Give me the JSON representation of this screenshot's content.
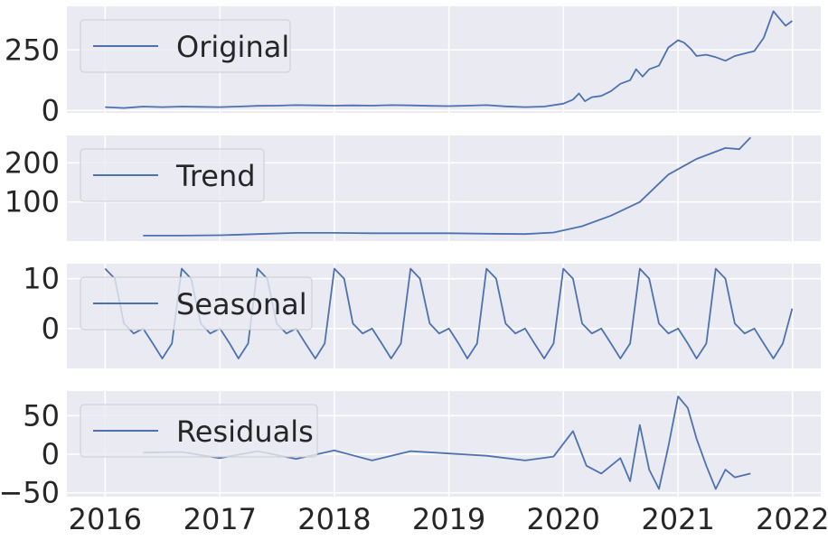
{
  "chart_data": [
    {
      "type": "line",
      "series": [
        {
          "name": "Original",
          "color": "#4c72b0",
          "points": [
            [
              "2016-01-01",
              14
            ],
            [
              "2016-02-01",
              12
            ],
            [
              "2016-03-01",
              10
            ],
            [
              "2016-04-01",
              13
            ],
            [
              "2016-05-01",
              16
            ],
            [
              "2016-07-01",
              14
            ],
            [
              "2016-09-01",
              16
            ],
            [
              "2016-11-01",
              15
            ],
            [
              "2017-01-01",
              14
            ],
            [
              "2017-03-01",
              16
            ],
            [
              "2017-05-01",
              19
            ],
            [
              "2017-07-01",
              20
            ],
            [
              "2017-09-01",
              22
            ],
            [
              "2017-11-01",
              21
            ],
            [
              "2018-01-01",
              20
            ],
            [
              "2018-03-01",
              21
            ],
            [
              "2018-05-01",
              20
            ],
            [
              "2018-07-01",
              22
            ],
            [
              "2018-09-01",
              21
            ],
            [
              "2018-11-01",
              19
            ],
            [
              "2019-01-01",
              18
            ],
            [
              "2019-03-01",
              20
            ],
            [
              "2019-05-01",
              22
            ],
            [
              "2019-07-01",
              17
            ],
            [
              "2019-09-01",
              14
            ],
            [
              "2019-11-01",
              16
            ],
            [
              "2020-01-01",
              28
            ],
            [
              "2020-02-01",
              45
            ],
            [
              "2020-02-20",
              70
            ],
            [
              "2020-03-10",
              38
            ],
            [
              "2020-04-01",
              55
            ],
            [
              "2020-05-01",
              60
            ],
            [
              "2020-06-01",
              80
            ],
            [
              "2020-07-01",
              110
            ],
            [
              "2020-08-01",
              125
            ],
            [
              "2020-08-20",
              170
            ],
            [
              "2020-09-10",
              140
            ],
            [
              "2020-10-01",
              170
            ],
            [
              "2020-11-01",
              185
            ],
            [
              "2020-12-01",
              260
            ],
            [
              "2021-01-01",
              290
            ],
            [
              "2021-01-20",
              280
            ],
            [
              "2021-02-10",
              255
            ],
            [
              "2021-03-01",
              225
            ],
            [
              "2021-04-01",
              230
            ],
            [
              "2021-05-01",
              220
            ],
            [
              "2021-06-01",
              205
            ],
            [
              "2021-07-01",
              225
            ],
            [
              "2021-08-01",
              235
            ],
            [
              "2021-09-01",
              245
            ],
            [
              "2021-10-01",
              300
            ],
            [
              "2021-11-01",
              410
            ],
            [
              "2021-11-20",
              380
            ],
            [
              "2021-12-10",
              350
            ],
            [
              "2021-12-31",
              370
            ]
          ]
        }
      ],
      "yticks": [
        0,
        250
      ],
      "ylim": [
        -10,
        430
      ],
      "xlim": [
        "2015-09-01",
        "2022-04-01"
      ]
    },
    {
      "type": "line",
      "series": [
        {
          "name": "Trend",
          "color": "#4c72b0",
          "points": [
            [
              "2016-05-01",
              14
            ],
            [
              "2016-09-01",
              14
            ],
            [
              "2017-01-01",
              15
            ],
            [
              "2017-05-01",
              18
            ],
            [
              "2017-09-01",
              21
            ],
            [
              "2018-01-01",
              21
            ],
            [
              "2018-05-01",
              20
            ],
            [
              "2018-09-01",
              20
            ],
            [
              "2019-01-01",
              20
            ],
            [
              "2019-05-01",
              19
            ],
            [
              "2019-09-01",
              18
            ],
            [
              "2019-12-01",
              22
            ],
            [
              "2020-03-01",
              38
            ],
            [
              "2020-06-01",
              65
            ],
            [
              "2020-09-01",
              100
            ],
            [
              "2020-12-01",
              170
            ],
            [
              "2021-03-01",
              210
            ],
            [
              "2021-06-01",
              238
            ],
            [
              "2021-07-15",
              235
            ],
            [
              "2021-08-20",
              265
            ]
          ]
        }
      ],
      "yticks": [
        100,
        200
      ],
      "ylim": [
        0,
        270
      ],
      "xlim": [
        "2015-09-01",
        "2022-04-01"
      ]
    },
    {
      "type": "line",
      "series": [
        {
          "name": "Seasonal",
          "color": "#4c72b0",
          "points": [
            [
              "2016-01-01",
              12
            ],
            [
              "2016-02-01",
              10
            ],
            [
              "2016-03-01",
              1
            ],
            [
              "2016-04-01",
              -1
            ],
            [
              "2016-05-01",
              0
            ],
            [
              "2016-06-01",
              -3
            ],
            [
              "2016-07-01",
              -6
            ],
            [
              "2016-08-01",
              -3
            ],
            [
              "2016-09-01",
              12
            ],
            [
              "2016-10-01",
              10
            ],
            [
              "2016-11-01",
              1
            ],
            [
              "2016-12-01",
              -1
            ],
            [
              "2017-01-01",
              0
            ],
            [
              "2017-02-01",
              -3
            ],
            [
              "2017-03-01",
              -6
            ],
            [
              "2017-04-01",
              -3
            ],
            [
              "2017-05-01",
              12
            ],
            [
              "2017-06-01",
              10
            ],
            [
              "2017-07-01",
              1
            ],
            [
              "2017-08-01",
              -1
            ],
            [
              "2017-09-01",
              0
            ],
            [
              "2017-10-01",
              -3
            ],
            [
              "2017-11-01",
              -6
            ],
            [
              "2017-12-01",
              -3
            ],
            [
              "2018-01-01",
              12
            ],
            [
              "2018-02-01",
              10
            ],
            [
              "2018-03-01",
              1
            ],
            [
              "2018-04-01",
              -1
            ],
            [
              "2018-05-01",
              0
            ],
            [
              "2018-06-01",
              -3
            ],
            [
              "2018-07-01",
              -6
            ],
            [
              "2018-08-01",
              -3
            ],
            [
              "2018-09-01",
              12
            ],
            [
              "2018-10-01",
              10
            ],
            [
              "2018-11-01",
              1
            ],
            [
              "2018-12-01",
              -1
            ],
            [
              "2019-01-01",
              0
            ],
            [
              "2019-02-01",
              -3
            ],
            [
              "2019-03-01",
              -6
            ],
            [
              "2019-04-01",
              -3
            ],
            [
              "2019-05-01",
              12
            ],
            [
              "2019-06-01",
              10
            ],
            [
              "2019-07-01",
              1
            ],
            [
              "2019-08-01",
              -1
            ],
            [
              "2019-09-01",
              0
            ],
            [
              "2019-10-01",
              -3
            ],
            [
              "2019-11-01",
              -6
            ],
            [
              "2019-12-01",
              -3
            ],
            [
              "2020-01-01",
              12
            ],
            [
              "2020-02-01",
              10
            ],
            [
              "2020-03-01",
              1
            ],
            [
              "2020-04-01",
              -1
            ],
            [
              "2020-05-01",
              0
            ],
            [
              "2020-06-01",
              -3
            ],
            [
              "2020-07-01",
              -6
            ],
            [
              "2020-08-01",
              -3
            ],
            [
              "2020-09-01",
              12
            ],
            [
              "2020-10-01",
              10
            ],
            [
              "2020-11-01",
              1
            ],
            [
              "2020-12-01",
              -1
            ],
            [
              "2021-01-01",
              0
            ],
            [
              "2021-02-01",
              -3
            ],
            [
              "2021-03-01",
              -6
            ],
            [
              "2021-04-01",
              -3
            ],
            [
              "2021-05-01",
              12
            ],
            [
              "2021-06-01",
              10
            ],
            [
              "2021-07-01",
              1
            ],
            [
              "2021-08-01",
              -1
            ],
            [
              "2021-09-01",
              0
            ],
            [
              "2021-10-01",
              -3
            ],
            [
              "2021-11-01",
              -6
            ],
            [
              "2021-12-01",
              -3
            ],
            [
              "2021-12-31",
              4
            ]
          ]
        }
      ],
      "yticks": [
        0,
        10
      ],
      "ylim": [
        -8,
        13
      ],
      "xlim": [
        "2015-09-01",
        "2022-04-01"
      ]
    },
    {
      "type": "line",
      "series": [
        {
          "name": "Residuals",
          "color": "#4c72b0",
          "points": [
            [
              "2016-05-01",
              2
            ],
            [
              "2016-09-01",
              3
            ],
            [
              "2017-01-01",
              -5
            ],
            [
              "2017-05-01",
              4
            ],
            [
              "2017-09-01",
              -6
            ],
            [
              "2018-01-01",
              5
            ],
            [
              "2018-05-01",
              -8
            ],
            [
              "2018-09-01",
              4
            ],
            [
              "2019-01-01",
              1
            ],
            [
              "2019-05-01",
              -2
            ],
            [
              "2019-09-01",
              -8
            ],
            [
              "2019-12-01",
              -3
            ],
            [
              "2020-02-01",
              30
            ],
            [
              "2020-03-15",
              -15
            ],
            [
              "2020-05-01",
              -25
            ],
            [
              "2020-07-01",
              -5
            ],
            [
              "2020-08-01",
              -35
            ],
            [
              "2020-09-01",
              38
            ],
            [
              "2020-10-01",
              -20
            ],
            [
              "2020-11-01",
              -45
            ],
            [
              "2020-12-01",
              10
            ],
            [
              "2021-01-01",
              75
            ],
            [
              "2021-02-01",
              60
            ],
            [
              "2021-03-01",
              20
            ],
            [
              "2021-04-01",
              -15
            ],
            [
              "2021-05-01",
              -45
            ],
            [
              "2021-06-01",
              -20
            ],
            [
              "2021-07-01",
              -30
            ],
            [
              "2021-08-20",
              -25
            ]
          ]
        }
      ],
      "yticks": [
        -50,
        0,
        50
      ],
      "ylim": [
        -55,
        82
      ],
      "xlim": [
        "2015-09-01",
        "2022-04-01"
      ]
    }
  ],
  "x_axis": {
    "tick_labels": [
      "2016",
      "2017",
      "2018",
      "2019",
      "2020",
      "2021",
      "2022"
    ]
  },
  "style": {
    "panel_bg": "#eaeaf2",
    "grid_color": "#ffffff",
    "line_color": "#4c72b0",
    "legend_bg": "#eaeaf2",
    "legend_border": "#cccccc",
    "text_color": "#262626"
  }
}
